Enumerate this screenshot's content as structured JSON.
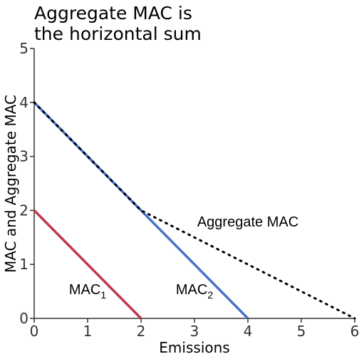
{
  "chart_data": {
    "type": "line",
    "title_lines": [
      "Aggregate MAC is",
      "the horizontal sum"
    ],
    "xlabel": "Emissions",
    "ylabel": "MAC and Aggregate MAC",
    "xlim": [
      0,
      6
    ],
    "ylim": [
      0,
      5
    ],
    "x_ticks": [
      "0",
      "1",
      "2",
      "3",
      "4",
      "5",
      "6"
    ],
    "y_ticks": [
      "0",
      "1",
      "2",
      "3",
      "4",
      "5"
    ],
    "grid": false,
    "series": [
      {
        "id": "mac1",
        "color": "#c0384f",
        "style": "solid",
        "x": [
          0,
          2
        ],
        "y": [
          2,
          0
        ],
        "label": {
          "main": "MAC",
          "sub": "1",
          "at": [
            1.0,
            0.45
          ]
        }
      },
      {
        "id": "mac2",
        "color": "#4a72c8",
        "style": "solid",
        "x": [
          0,
          4
        ],
        "y": [
          4,
          0
        ],
        "label": {
          "main": "MAC",
          "sub": "2",
          "at": [
            3.0,
            0.45
          ]
        }
      },
      {
        "id": "aggregate-mac",
        "color": "#000000",
        "style": "dotted",
        "x": [
          0,
          2,
          6
        ],
        "y": [
          4,
          2,
          0
        ],
        "label": {
          "main": "Aggregate MAC",
          "sub": "",
          "at": [
            4.0,
            1.7
          ]
        }
      }
    ]
  }
}
